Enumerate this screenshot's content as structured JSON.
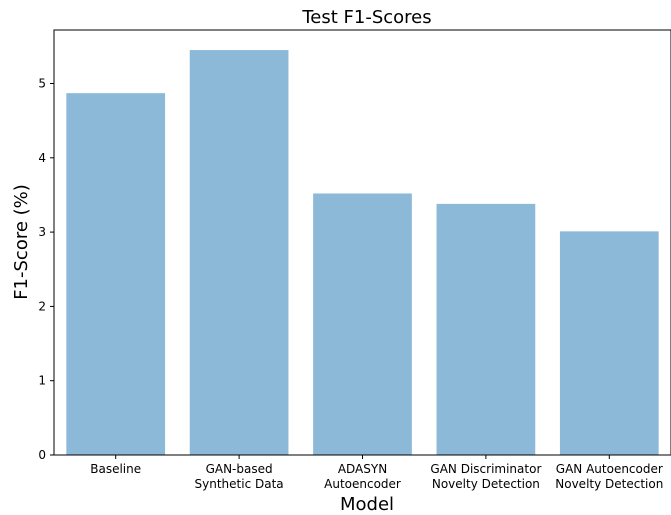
{
  "chart_data": {
    "type": "bar",
    "title": "Test F1-Scores",
    "xlabel": "Model",
    "ylabel": "F1-Score (%)",
    "categories": [
      [
        "Baseline"
      ],
      [
        "GAN-based",
        "Synthetic Data"
      ],
      [
        "ADASYN",
        "Autoencoder"
      ],
      [
        "GAN Discriminator",
        "Novelty Detection"
      ],
      [
        "GAN Autoencoder",
        "Novelty Detection"
      ]
    ],
    "values": [
      4.87,
      5.45,
      3.52,
      3.38,
      3.01
    ],
    "ylim": [
      0,
      5.72
    ],
    "yticks": [
      0,
      1,
      2,
      3,
      4,
      5
    ],
    "bar_color": "#8db9d9",
    "grid": false,
    "legend": false
  }
}
